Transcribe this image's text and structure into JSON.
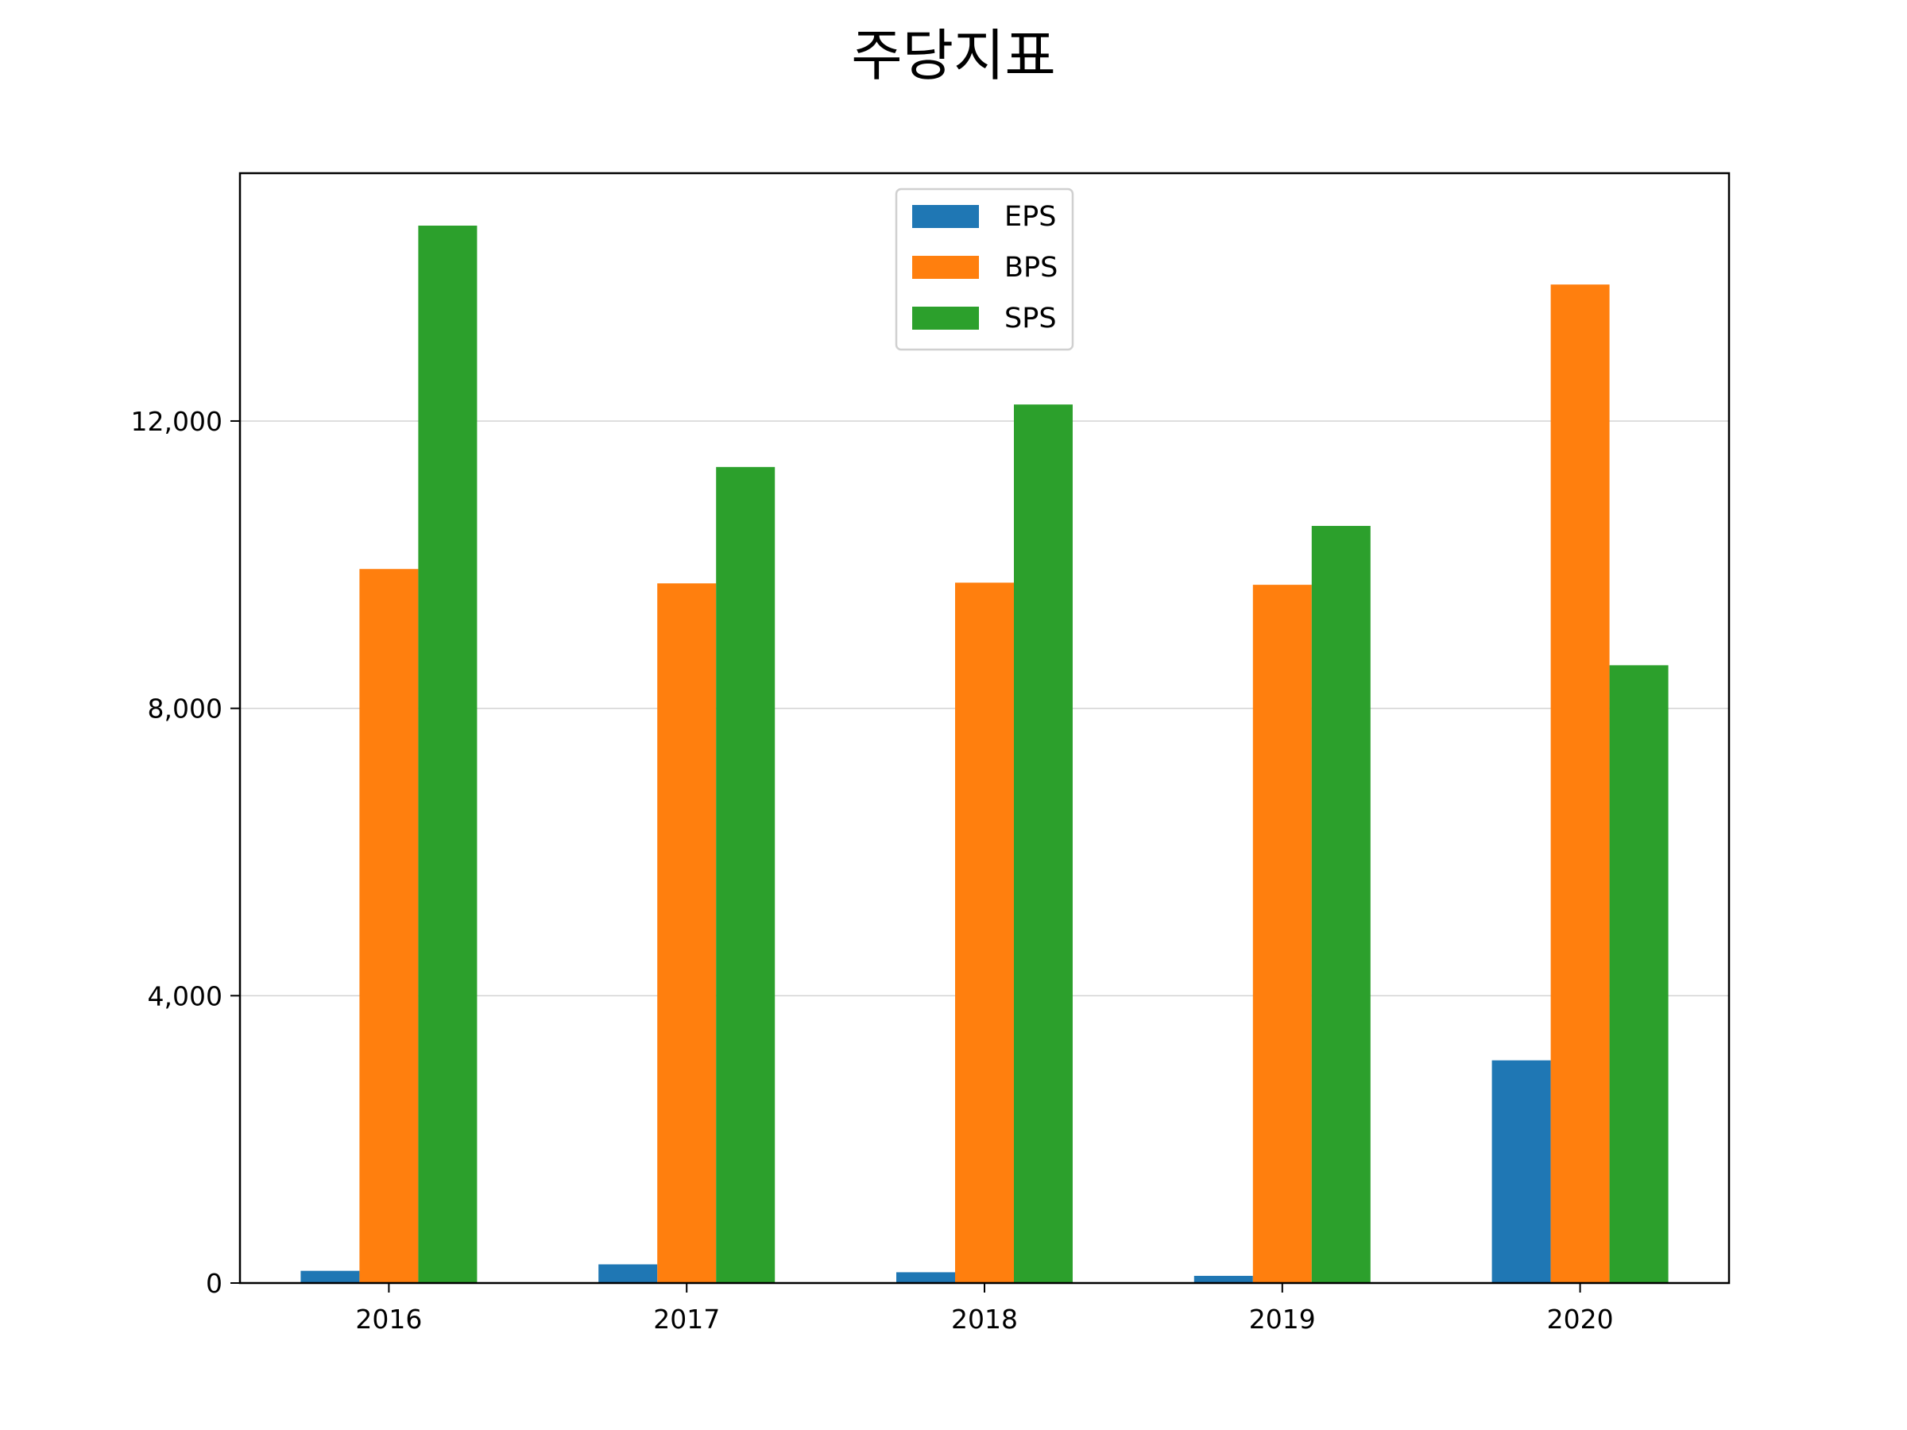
{
  "chart_data": {
    "type": "bar",
    "title": "주당지표",
    "categories": [
      "2016",
      "2017",
      "2018",
      "2019",
      "2020"
    ],
    "series": [
      {
        "name": "EPS",
        "color": "#1f77b4",
        "values": [
          170,
          260,
          150,
          100,
          3100
        ]
      },
      {
        "name": "BPS",
        "color": "#ff7f0e",
        "values": [
          9940,
          9740,
          9750,
          9720,
          13900
        ]
      },
      {
        "name": "SPS",
        "color": "#2ca02c",
        "values": [
          14720,
          11360,
          12230,
          10540,
          8600
        ]
      }
    ],
    "xlabel": "",
    "ylabel": "",
    "ylim": [
      0,
      15450
    ],
    "yticks": [
      0,
      4000,
      8000,
      12000
    ],
    "ytick_labels": [
      "0",
      "4,000",
      "8,000",
      "12,000"
    ],
    "grid": "horizontal",
    "legend_position": "top-center"
  }
}
